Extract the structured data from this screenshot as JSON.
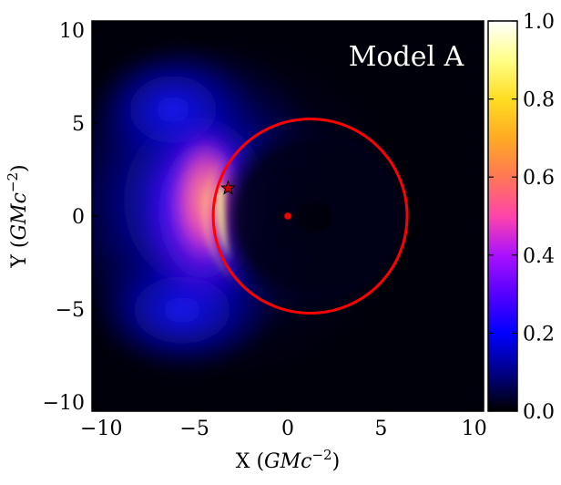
{
  "chart_data": {
    "type": "heatmap",
    "title": "",
    "annotation": "Model A",
    "xlabel": "X (GMc⁻²)",
    "ylabel": "Y (GMc⁻²)",
    "xlabel_parts": {
      "symbol": "X",
      "unit": "GMc",
      "exponent": "−2"
    },
    "ylabel_parts": {
      "symbol": "Y",
      "unit": "GMc",
      "exponent": "−2"
    },
    "xlim": [
      -10.5,
      10.5
    ],
    "ylim": [
      -10.5,
      10.5
    ],
    "xticks": [
      -10,
      -5,
      0,
      5,
      10
    ],
    "yticks": [
      -10,
      -5,
      0,
      5,
      10
    ],
    "xtick_labels": [
      "−10",
      "−5",
      "0",
      "5",
      "10"
    ],
    "ytick_labels": [
      "−10",
      "−5",
      "0",
      "5",
      "10"
    ],
    "colormap": "gnuplot2",
    "colorbar": {
      "range": [
        0.0,
        1.0
      ],
      "ticks": [
        0.0,
        0.2,
        0.4,
        0.6,
        0.8,
        1.0
      ],
      "tick_labels": [
        "0.0",
        "0.2",
        "0.4",
        "0.6",
        "0.8",
        "1.0"
      ]
    },
    "overlays": {
      "circle": {
        "center": [
          1.2,
          0.0
        ],
        "radius": 5.2,
        "color": "#ff0000"
      },
      "center_marker": {
        "x": 0.0,
        "y": 0.0,
        "color": "#ff0000",
        "shape": "circle"
      },
      "star_marker": {
        "x": -3.2,
        "y": 1.5,
        "color": "#cc0000",
        "shape": "star"
      }
    },
    "grid": false
  },
  "colors": {
    "cmap_stops": [
      "#000000",
      "#000088",
      "#0000ff",
      "#5500ff",
      "#aa11ff",
      "#ff44aa",
      "#ff7755",
      "#ffaa22",
      "#ffdd22",
      "#ffff88",
      "#ffffff"
    ]
  }
}
